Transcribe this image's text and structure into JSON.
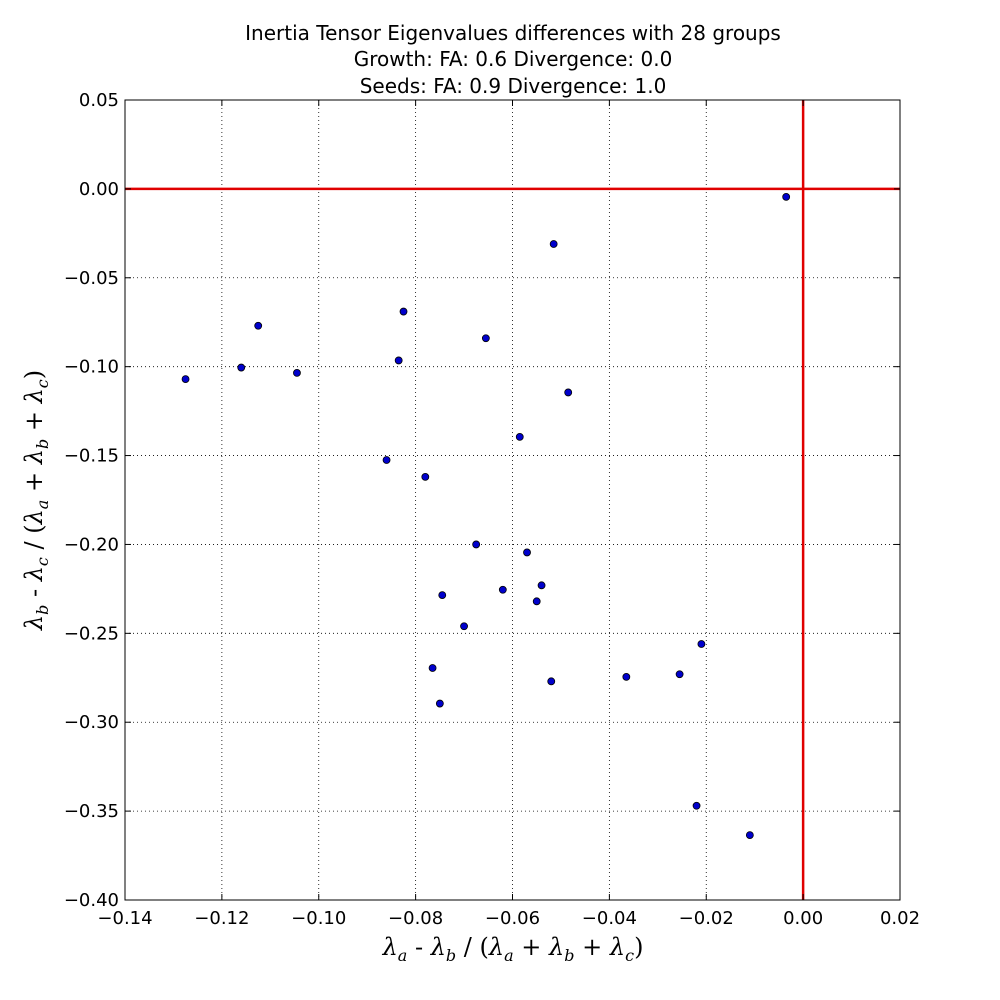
{
  "chart_data": {
    "type": "scatter",
    "title_lines": [
      "Inertia Tensor Eigenvalues differences with 28 groups",
      "Growth: FA: 0.6 Divergence: 0.0",
      "Seeds: FA: 0.9 Divergence: 1.0"
    ],
    "xlabel": "λa - λb / (λa + λb + λc)",
    "ylabel": "λb - λc / (λa + λb + λc)",
    "xlim": [
      -0.14,
      0.02
    ],
    "ylim": [
      -0.4,
      0.05
    ],
    "x_ticks": [
      -0.14,
      -0.12,
      -0.1,
      -0.08,
      -0.06,
      -0.04,
      -0.02,
      0.0,
      0.02
    ],
    "x_tick_labels": [
      "−0.14",
      "−0.12",
      "−0.10",
      "−0.08",
      "−0.06",
      "−0.04",
      "−0.02",
      "0.00",
      "0.02"
    ],
    "y_ticks": [
      0.05,
      0.0,
      -0.05,
      -0.1,
      -0.15,
      -0.2,
      -0.25,
      -0.3,
      -0.35,
      -0.4
    ],
    "y_tick_labels": [
      "0.05",
      "0.00",
      "−0.05",
      "−0.10",
      "−0.15",
      "−0.20",
      "−0.25",
      "−0.30",
      "−0.35",
      "−0.40"
    ],
    "grid": true,
    "reference_lines": {
      "x": 0.0,
      "y": 0.0,
      "color": "#e00000"
    },
    "marker_color": "#0000cc",
    "points": [
      {
        "x": -0.0035,
        "y": -0.0045
      },
      {
        "x": -0.0515,
        "y": -0.031
      },
      {
        "x": -0.0825,
        "y": -0.069
      },
      {
        "x": -0.1125,
        "y": -0.077
      },
      {
        "x": -0.0655,
        "y": -0.084
      },
      {
        "x": -0.0835,
        "y": -0.0965
      },
      {
        "x": -0.116,
        "y": -0.1005
      },
      {
        "x": -0.1045,
        "y": -0.1035
      },
      {
        "x": -0.1275,
        "y": -0.107
      },
      {
        "x": -0.0485,
        "y": -0.1145
      },
      {
        "x": -0.0585,
        "y": -0.1395
      },
      {
        "x": -0.086,
        "y": -0.1525
      },
      {
        "x": -0.078,
        "y": -0.162
      },
      {
        "x": -0.0675,
        "y": -0.2
      },
      {
        "x": -0.057,
        "y": -0.2045
      },
      {
        "x": -0.054,
        "y": -0.223
      },
      {
        "x": -0.062,
        "y": -0.2255
      },
      {
        "x": -0.0745,
        "y": -0.2285
      },
      {
        "x": -0.055,
        "y": -0.232
      },
      {
        "x": -0.07,
        "y": -0.246
      },
      {
        "x": -0.021,
        "y": -0.256
      },
      {
        "x": -0.0765,
        "y": -0.2695
      },
      {
        "x": -0.0255,
        "y": -0.273
      },
      {
        "x": -0.0365,
        "y": -0.2745
      },
      {
        "x": -0.052,
        "y": -0.277
      },
      {
        "x": -0.075,
        "y": -0.2895
      },
      {
        "x": -0.022,
        "y": -0.347
      },
      {
        "x": -0.011,
        "y": -0.3635
      }
    ]
  }
}
